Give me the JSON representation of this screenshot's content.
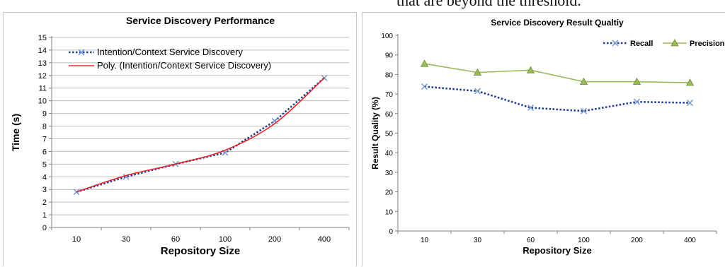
{
  "page": {
    "caption_fragment": "that are beyond the threshold."
  },
  "chart_data": [
    {
      "type": "line",
      "title": "Service Discovery Performance",
      "xlabel": "Repository Size",
      "ylabel": "Time (s)",
      "categories": [
        "10",
        "30",
        "60",
        "100",
        "200",
        "400"
      ],
      "ylim": [
        0,
        15
      ],
      "yticks": [
        "0",
        "1",
        "2",
        "3",
        "4",
        "5",
        "6",
        "7",
        "8",
        "9",
        "10",
        "11",
        "12",
        "13",
        "14",
        "15"
      ],
      "grid": true,
      "legend_position": "top-left",
      "series": [
        {
          "name": "Intention/Context Service Discovery",
          "values": [
            2.8,
            4.0,
            5.0,
            5.9,
            8.4,
            11.8
          ],
          "color": "#1f3f8f",
          "style": "dotted",
          "marker": "x"
        },
        {
          "name": "Poly. (Intention/Context Service Discovery)",
          "values": [
            2.8,
            4.1,
            5.0,
            6.1,
            8.2,
            11.8
          ],
          "color": "#e8262a",
          "style": "solid",
          "marker": "none"
        }
      ]
    },
    {
      "type": "line",
      "title": "Service Discovery Result Qualtiy",
      "xlabel": "Repository Size",
      "ylabel": "Result Quality (%)",
      "categories": [
        "10",
        "30",
        "60",
        "100",
        "200",
        "400"
      ],
      "ylim": [
        0,
        100
      ],
      "yticks": [
        "0",
        "10",
        "20",
        "30",
        "40",
        "50",
        "60",
        "70",
        "80",
        "90",
        "100"
      ],
      "grid": false,
      "legend_position": "top-right",
      "series": [
        {
          "name": "Recall",
          "values": [
            73.8,
            71.5,
            63.0,
            61.3,
            66.0,
            65.5
          ],
          "color": "#1f3f8f",
          "style": "dotted",
          "marker": "x"
        },
        {
          "name": "Precision",
          "values": [
            85.5,
            81.0,
            82.2,
            76.3,
            76.3,
            75.8
          ],
          "color": "#9bbb59",
          "style": "solid",
          "marker": "triangle"
        }
      ]
    }
  ]
}
